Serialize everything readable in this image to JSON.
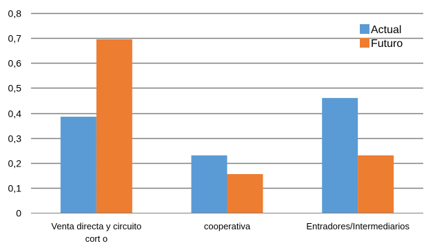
{
  "chart_data": {
    "type": "bar",
    "title": "",
    "xlabel": "",
    "ylabel": "",
    "categories": [
      [
        "Venta directa y circuito",
        "cort o"
      ],
      [
        "cooperativa"
      ],
      [
        "Entradores/Intermediarios"
      ]
    ],
    "series": [
      {
        "name": "Actual",
        "color": "#5B9BD5",
        "values": [
          0.385,
          0.23,
          0.46
        ]
      },
      {
        "name": "Futuro",
        "color": "#ED7D31",
        "values": [
          0.695,
          0.155,
          0.23
        ]
      }
    ],
    "ylim": [
      0,
      0.8
    ],
    "yticks": [
      "0",
      "0,1",
      "0,2",
      "0,3",
      "0,4",
      "0,5",
      "0,6",
      "0,7",
      "0,8"
    ],
    "grid": true,
    "legend_position": "top-right",
    "gridline_color": "#808080",
    "axis_color": "#808080"
  }
}
